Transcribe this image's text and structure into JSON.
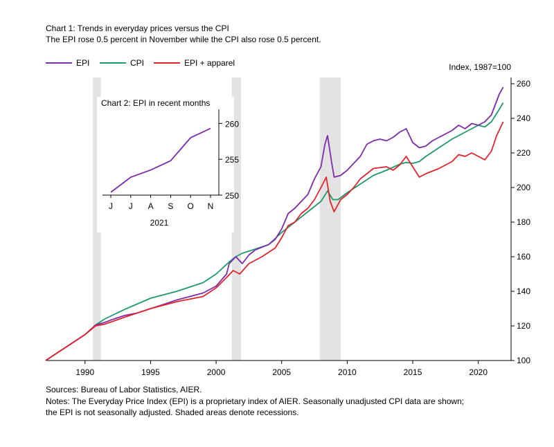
{
  "title": "Chart 1: Trends in everyday prices versus the CPI",
  "subtitle": "The EPI rose 0.5 percent in November while the CPI also rose 0.5 percent.",
  "index_label": "Index, 1987=100",
  "sources": "Sources: Bureau of Labor Statistics, AIER.",
  "notes_line1": "Notes: The Everyday Price Index (EPI) is a proprietary index of AIER. Seasonally unadjusted CPI data are shown;",
  "notes_line2": "the EPI is not seasonally adjusted. Shaded areas denote recessions.",
  "colors": {
    "epi": "#7f2aa8",
    "cpi": "#1a9a6c",
    "epi_apparel": "#e3222b",
    "recession": "#e3e3e3"
  },
  "chart_data": [
    {
      "type": "line",
      "title": "Chart 1: Trends in everyday prices versus the CPI",
      "ylabel": "Index, 1987=100",
      "xlim": [
        1987,
        2022.5
      ],
      "ylim": [
        100,
        262
      ],
      "x_ticks": [
        1990,
        1995,
        2000,
        2005,
        2010,
        2015,
        2020
      ],
      "x_tick_labels": [
        "1990",
        "1995",
        "2000",
        "2005",
        "2010",
        "2015",
        "2020"
      ],
      "y_ticks": [
        100,
        120,
        140,
        160,
        180,
        200,
        220,
        240,
        260
      ],
      "y_tick_labels": [
        "100",
        "120",
        "140",
        "160",
        "180",
        "200",
        "220",
        "240",
        "260"
      ],
      "legend_position": "top-left",
      "recessions": [
        [
          1990.6,
          1991.2
        ],
        [
          2001.2,
          2001.9
        ],
        [
          2007.9,
          2009.5
        ]
      ],
      "series": [
        {
          "name": "EPI",
          "key": "epi",
          "x": [
            1987,
            1988,
            1989,
            1990,
            1990.8,
            1991.5,
            1992,
            1993,
            1994,
            1995,
            1996,
            1997,
            1998,
            1999,
            2000,
            2000.8,
            2001,
            2001.5,
            2002,
            2002.5,
            2003,
            2004,
            2004.5,
            2005,
            2005.5,
            2006,
            2006.5,
            2007,
            2007.5,
            2008,
            2008.3,
            2008.5,
            2008.8,
            2009,
            2009.5,
            2010,
            2010.5,
            2011,
            2011.5,
            2012,
            2012.5,
            2013,
            2013.5,
            2014,
            2014.5,
            2015,
            2015.5,
            2016,
            2016.5,
            2017,
            2017.5,
            2018,
            2018.5,
            2019,
            2019.5,
            2020,
            2020.5,
            2021,
            2021.3,
            2021.6,
            2021.9
          ],
          "values": [
            100,
            105,
            110,
            115,
            120.5,
            122,
            123.5,
            126,
            127.5,
            130,
            132.5,
            135,
            137,
            139,
            143,
            150,
            156,
            160,
            156,
            161,
            164,
            167,
            170,
            176,
            185,
            188,
            192,
            196,
            205,
            212,
            225,
            230,
            215,
            206,
            207,
            210,
            214,
            218,
            225,
            227,
            228,
            227,
            229,
            232,
            234,
            226,
            223,
            224,
            227,
            229,
            231,
            233,
            236,
            234,
            237,
            236,
            238,
            242,
            248,
            254,
            258
          ]
        },
        {
          "name": "CPI",
          "key": "cpi",
          "x": [
            1987,
            1988,
            1989,
            1990,
            1990.8,
            1991.5,
            1993,
            1995,
            1997,
            1999,
            2000,
            2001,
            2001.5,
            2002,
            2003,
            2004,
            2005,
            2006,
            2007,
            2008,
            2008.5,
            2008.9,
            2009.3,
            2010,
            2011,
            2012,
            2013,
            2014,
            2014.5,
            2015,
            2015.5,
            2016,
            2017,
            2018,
            2019,
            2020,
            2020.5,
            2021,
            2021.5,
            2021.9
          ],
          "values": [
            100,
            105,
            110,
            115,
            120.5,
            124,
            129.5,
            136,
            140,
            145,
            150,
            157,
            160,
            162,
            164.5,
            167,
            174,
            180,
            186,
            192,
            198,
            193,
            193,
            197,
            202,
            207,
            210,
            213.5,
            214.5,
            214,
            215,
            218,
            223,
            228,
            232,
            236,
            235,
            238,
            244,
            249
          ]
        },
        {
          "name": "EPI + apparel",
          "key": "epi_apparel",
          "x": [
            1987,
            1988,
            1989,
            1990,
            1990.8,
            1991.5,
            1993,
            1995,
            1997,
            1999,
            2000,
            2000.8,
            2001.3,
            2001.8,
            2002.5,
            2003.5,
            2004.5,
            2005,
            2005.5,
            2006,
            2006.5,
            2007,
            2007.5,
            2008,
            2008.4,
            2008.7,
            2009,
            2009.5,
            2010,
            2010.5,
            2011,
            2011.5,
            2012,
            2013,
            2013.5,
            2014,
            2014.5,
            2015,
            2015.5,
            2016,
            2017,
            2018,
            2018.5,
            2019,
            2019.5,
            2020,
            2020.5,
            2021,
            2021.4,
            2021.9
          ],
          "values": [
            100,
            105,
            110,
            115,
            120,
            121,
            125,
            130,
            134,
            137,
            142,
            148,
            152,
            150,
            156,
            160,
            165,
            171,
            178,
            180,
            185,
            188,
            193,
            200,
            206,
            192,
            186,
            193,
            196,
            200,
            205,
            208,
            211,
            212,
            210,
            213,
            218,
            212,
            206,
            208,
            211,
            215,
            219,
            218,
            220,
            218,
            216,
            221,
            230,
            238
          ]
        }
      ]
    },
    {
      "type": "line",
      "title": "Chart 2: EPI in recent months",
      "xlabel": "2021",
      "categories": [
        "J",
        "J",
        "A",
        "S",
        "O",
        "N"
      ],
      "ylim": [
        250,
        261
      ],
      "y_ticks": [
        250,
        255,
        260
      ],
      "y_tick_labels": [
        "250",
        "255",
        "260"
      ],
      "series": [
        {
          "key": "epi",
          "values": [
            250.4,
            252.5,
            253.5,
            254.8,
            258.0,
            259.3
          ]
        }
      ]
    }
  ]
}
